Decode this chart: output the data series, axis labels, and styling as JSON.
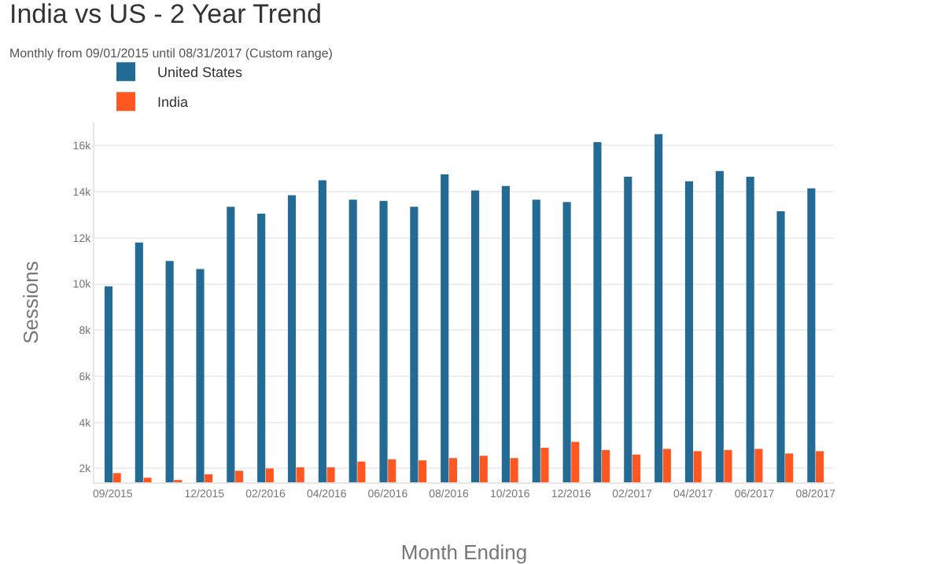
{
  "chart_data": {
    "type": "bar",
    "title": "India vs US - 2 Year Trend",
    "subtitle": "Monthly from 09/01/2015 until 08/31/2017 (Custom range)",
    "xlabel": "Month Ending",
    "ylabel": "Sessions",
    "categories": [
      "09/2015",
      null,
      null,
      "12/2015",
      null,
      "02/2016",
      null,
      "04/2016",
      null,
      "06/2016",
      null,
      "08/2016",
      null,
      "10/2016",
      null,
      "12/2016",
      null,
      "02/2017",
      null,
      "04/2017",
      null,
      "06/2017",
      null,
      "08/2017"
    ],
    "series": [
      {
        "name": "United States",
        "color": "#236a94",
        "values": [
          9900,
          11800,
          11000,
          10650,
          13350,
          13050,
          13850,
          14500,
          13650,
          13600,
          13350,
          14750,
          14050,
          14250,
          13650,
          13550,
          16150,
          14650,
          16500,
          14450,
          14900,
          14650,
          13150,
          14150
        ]
      },
      {
        "name": "India",
        "color": "#ff5722",
        "values": [
          1800,
          1600,
          1500,
          1750,
          1900,
          2000,
          2050,
          2050,
          2300,
          2400,
          2350,
          2450,
          2550,
          2450,
          2900,
          3150,
          2800,
          2600,
          2850,
          2750,
          2800,
          2850,
          2650,
          2750
        ]
      }
    ],
    "ylim": [
      1400,
      17000
    ],
    "yticks": [
      {
        "value": 2000,
        "label": "2k"
      },
      {
        "value": 4000,
        "label": "4k"
      },
      {
        "value": 6000,
        "label": "6k"
      },
      {
        "value": 8000,
        "label": "8k"
      },
      {
        "value": 10000,
        "label": "10k"
      },
      {
        "value": 12000,
        "label": "12k"
      },
      {
        "value": 14000,
        "label": "14k"
      },
      {
        "value": 16000,
        "label": "16k"
      }
    ],
    "grid": "y",
    "legend": "top"
  }
}
